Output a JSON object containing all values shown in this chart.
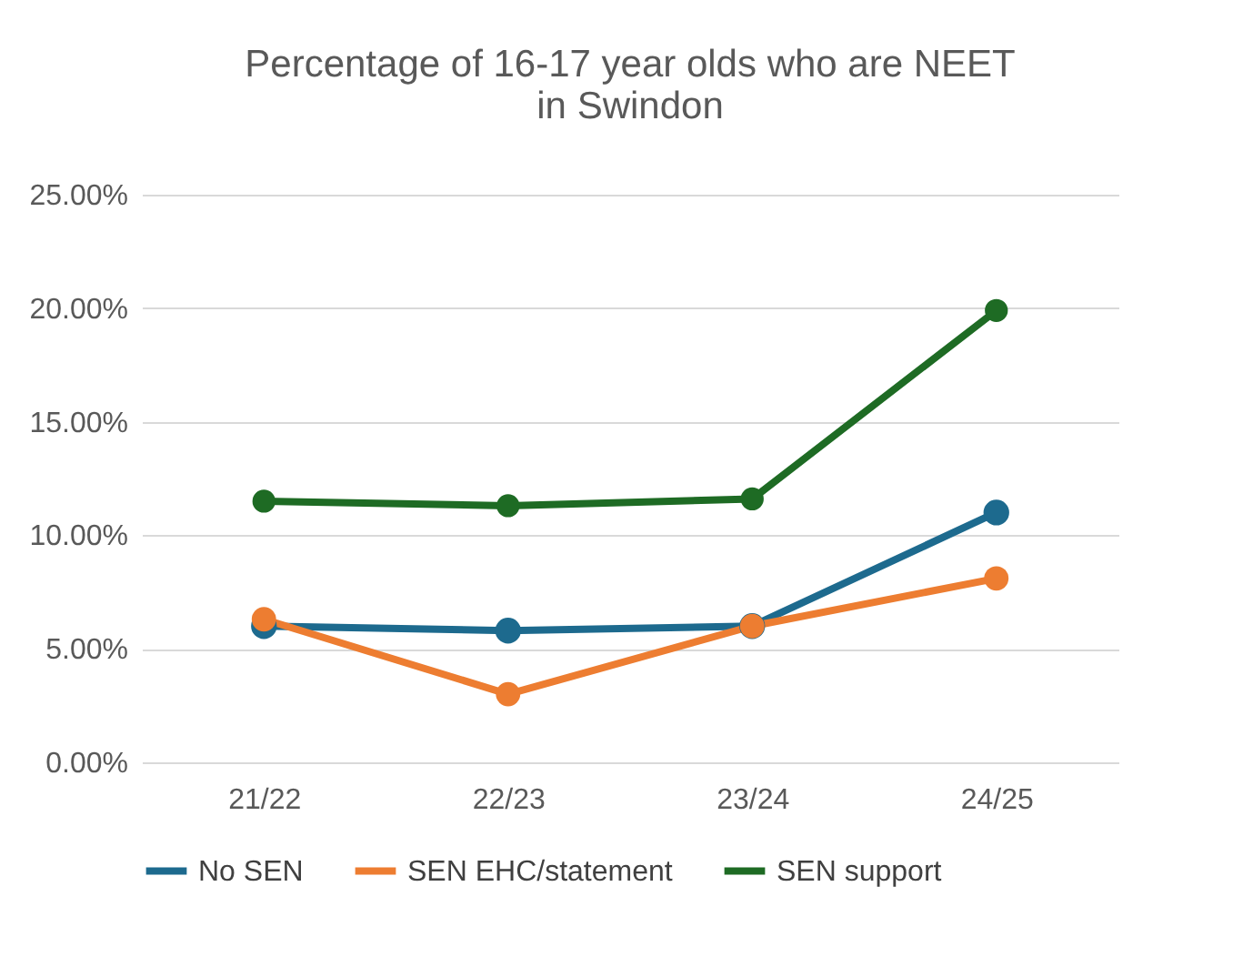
{
  "chart_data": {
    "type": "line",
    "title": "Percentage of 16-17 year olds who are NEET\nin Swindon",
    "categories": [
      "21/22",
      "22/23",
      "23/24",
      "24/25"
    ],
    "series": [
      {
        "name": "No SEN",
        "color": "#1d6a8e",
        "values": [
          6.0,
          5.8,
          6.0,
          11.0
        ]
      },
      {
        "name": "SEN EHC/statement",
        "color": "#ed7d31",
        "values": [
          6.3,
          3.0,
          6.0,
          8.1
        ]
      },
      {
        "name": "SEN support",
        "color": "#1e6b24",
        "values": [
          11.5,
          11.3,
          11.6,
          19.9
        ]
      }
    ],
    "ylim": [
      0,
      25
    ],
    "yticks": [
      {
        "value": 0,
        "label": "0.00%"
      },
      {
        "value": 5,
        "label": "5.00%"
      },
      {
        "value": 10,
        "label": "10.00%"
      },
      {
        "value": 15,
        "label": "15.00%"
      },
      {
        "value": 20,
        "label": "20.00%"
      },
      {
        "value": 25,
        "label": "25.00%"
      }
    ],
    "grid": "y",
    "legend": "bottom",
    "marker": "circle",
    "line_style": "solid"
  }
}
